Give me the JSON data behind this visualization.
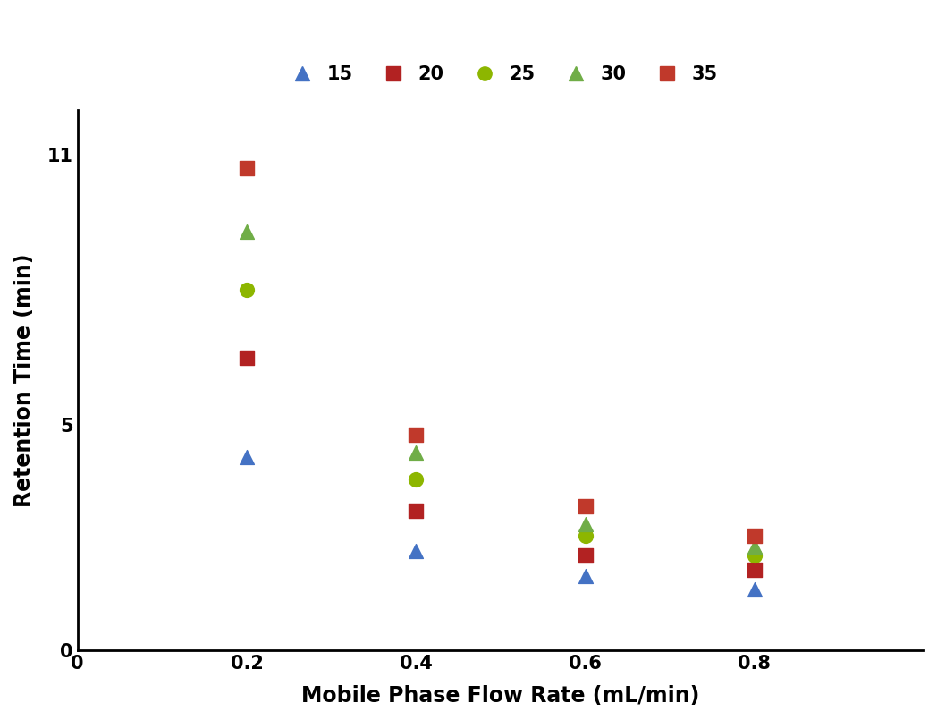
{
  "series": [
    {
      "label": "15",
      "marker": "^",
      "color": "#4472C4",
      "x": [
        0.2,
        0.4,
        0.6,
        0.8
      ],
      "y": [
        4.3,
        2.2,
        1.65,
        1.35
      ]
    },
    {
      "label": "20",
      "marker": "s",
      "color": "#B22222",
      "x": [
        0.2,
        0.4,
        0.6,
        0.8
      ],
      "y": [
        6.5,
        3.1,
        2.1,
        1.8
      ]
    },
    {
      "label": "25",
      "marker": "o",
      "color": "#8DB600",
      "x": [
        0.2,
        0.4,
        0.6,
        0.8
      ],
      "y": [
        8.0,
        3.8,
        2.55,
        2.1
      ]
    },
    {
      "label": "30",
      "marker": "^",
      "color": "#70AD47",
      "x": [
        0.2,
        0.4,
        0.6,
        0.8
      ],
      "y": [
        9.3,
        4.4,
        2.8,
        2.3
      ]
    },
    {
      "label": "35",
      "marker": "s",
      "color": "#C0392B",
      "x": [
        0.2,
        0.4,
        0.6,
        0.8
      ],
      "y": [
        10.7,
        4.8,
        3.2,
        2.55
      ]
    }
  ],
  "xlabel": "Mobile Phase Flow Rate (mL/min)",
  "ylabel": "Retention Time (min)",
  "xlim": [
    0,
    1.0
  ],
  "ylim": [
    0,
    12
  ],
  "xticks": [
    0,
    0.2,
    0.4,
    0.6,
    0.8
  ],
  "yticks": [
    0,
    5,
    11
  ],
  "marker_size": 130,
  "background_color": "#ffffff",
  "legend_ncol": 5,
  "font_size": 15,
  "axis_label_fontsize": 17,
  "tick_fontsize": 15
}
